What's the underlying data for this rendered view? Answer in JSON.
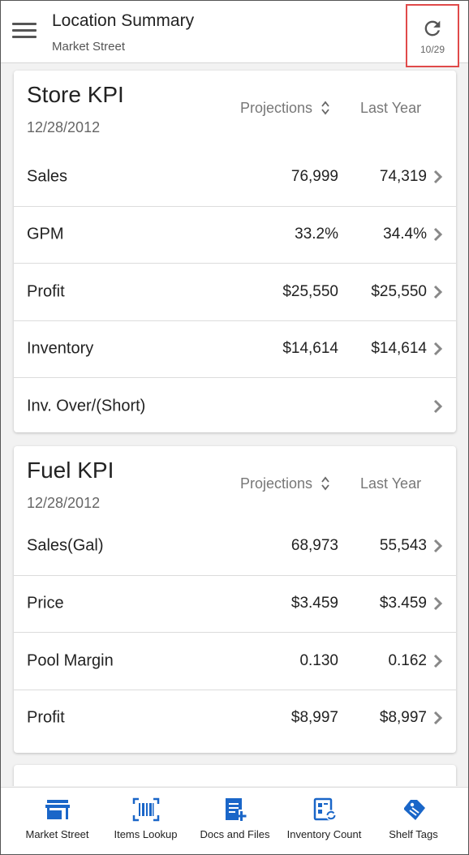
{
  "header": {
    "title": "Location Summary",
    "subtitle": "Market Street",
    "refresh_date": "10/29"
  },
  "store_kpi": {
    "title": "Store KPI",
    "date": "12/28/2012",
    "col_projections": "Projections",
    "col_last_year": "Last Year",
    "rows": [
      {
        "label": "Sales",
        "projections": "76,999",
        "last_year": "74,319"
      },
      {
        "label": "GPM",
        "projections": "33.2%",
        "last_year": "34.4%"
      },
      {
        "label": "Profit",
        "projections": "$25,550",
        "last_year": "$25,550"
      },
      {
        "label": "Inventory",
        "projections": "$14,614",
        "last_year": "$14,614"
      },
      {
        "label": "Inv. Over/(Short)",
        "projections": "",
        "last_year": ""
      }
    ]
  },
  "fuel_kpi": {
    "title": "Fuel KPI",
    "date": "12/28/2012",
    "col_projections": "Projections",
    "col_last_year": "Last Year",
    "rows": [
      {
        "label": "Sales(Gal)",
        "projections": "68,973",
        "last_year": "55,543"
      },
      {
        "label": "Price",
        "projections": "$3.459",
        "last_year": "$3.459"
      },
      {
        "label": "Pool Margin",
        "projections": "0.130",
        "last_year": "0.162"
      },
      {
        "label": "Profit",
        "projections": "$8,997",
        "last_year": "$8,997"
      }
    ]
  },
  "bottom_nav": {
    "items": [
      {
        "label": "Market Street",
        "icon": "store-icon"
      },
      {
        "label": "Items Lookup",
        "icon": "barcode-scan-icon"
      },
      {
        "label": "Docs and Files",
        "icon": "document-add-icon"
      },
      {
        "label": "Inventory Count",
        "icon": "inventory-sync-icon"
      },
      {
        "label": "Shelf Tags",
        "icon": "tag-icon"
      }
    ]
  },
  "colors": {
    "accent_blue": "#1a66c8",
    "highlight_red": "#e04a4a",
    "chevron_gray": "#888888"
  }
}
